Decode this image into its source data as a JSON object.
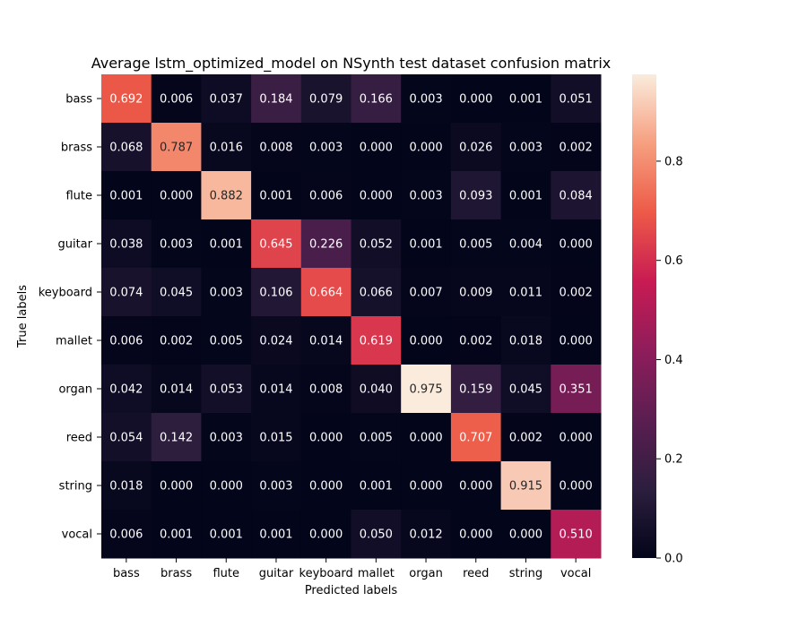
{
  "chart_data": {
    "type": "heatmap",
    "title": "Average lstm_optimized_model on NSynth test dataset confusion matrix",
    "xlabel": "Predicted labels",
    "ylabel": "True labels",
    "x_categories": [
      "bass",
      "brass",
      "flute",
      "guitar",
      "keyboard",
      "mallet",
      "organ",
      "reed",
      "string",
      "vocal"
    ],
    "y_categories": [
      "bass",
      "brass",
      "flute",
      "guitar",
      "keyboard",
      "mallet",
      "organ",
      "reed",
      "string",
      "vocal"
    ],
    "values": [
      [
        0.692,
        0.006,
        0.037,
        0.184,
        0.079,
        0.166,
        0.003,
        0.0,
        0.001,
        0.051
      ],
      [
        0.068,
        0.787,
        0.016,
        0.008,
        0.003,
        0.0,
        0.0,
        0.026,
        0.003,
        0.002
      ],
      [
        0.001,
        0.0,
        0.882,
        0.001,
        0.006,
        0.0,
        0.003,
        0.093,
        0.001,
        0.084
      ],
      [
        0.038,
        0.003,
        0.001,
        0.645,
        0.226,
        0.052,
        0.001,
        0.005,
        0.004,
        0.0
      ],
      [
        0.074,
        0.045,
        0.003,
        0.106,
        0.664,
        0.066,
        0.007,
        0.009,
        0.011,
        0.002
      ],
      [
        0.006,
        0.002,
        0.005,
        0.024,
        0.014,
        0.619,
        0.0,
        0.002,
        0.018,
        0.0
      ],
      [
        0.042,
        0.014,
        0.053,
        0.014,
        0.008,
        0.04,
        0.975,
        0.159,
        0.045,
        0.351
      ],
      [
        0.054,
        0.142,
        0.003,
        0.015,
        0.0,
        0.005,
        0.0,
        0.707,
        0.002,
        0.0
      ],
      [
        0.018,
        0.0,
        0.0,
        0.003,
        0.0,
        0.001,
        0.0,
        0.0,
        0.915,
        0.0
      ],
      [
        0.006,
        0.001,
        0.001,
        0.001,
        0.0,
        0.05,
        0.012,
        0.0,
        0.0,
        0.51
      ]
    ],
    "value_format_decimals": 3,
    "colormap": "rocket",
    "colormap_stops": [
      "#03051a",
      "#2c1e3e",
      "#5b1e51",
      "#8e1d5b",
      "#c81b53",
      "#ed5a47",
      "#f69f7f",
      "#faebdd"
    ],
    "vmin": 0.0,
    "vmax": 0.975,
    "colorbar_ticks": [
      "0.0",
      "0.2",
      "0.4",
      "0.6",
      "0.8"
    ],
    "legend_placement": "right colorbar",
    "grid": false
  }
}
